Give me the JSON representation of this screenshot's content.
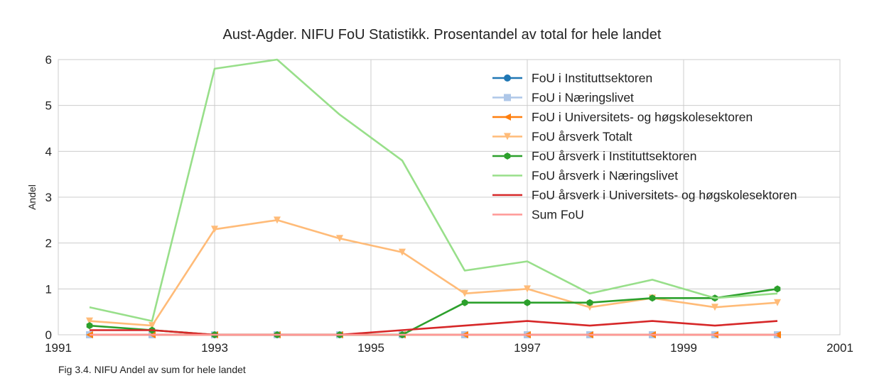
{
  "chart_data": {
    "type": "line",
    "title": "Aust-Agder. NIFU FoU Statistikk. Prosentandel av total for hele landet",
    "xlabel": "",
    "ylabel": "Andel",
    "xlim": [
      1991,
      2001
    ],
    "ylim": [
      0,
      6
    ],
    "xticks": [
      "1991",
      "1993",
      "1995",
      "1997",
      "1999",
      "2001"
    ],
    "yticks": [
      "0",
      "1",
      "2",
      "3",
      "4",
      "5",
      "6"
    ],
    "grid": true,
    "legend_position": "top-right",
    "x": [
      1991.4,
      1992.2,
      1993.0,
      1993.8,
      1994.6,
      1995.4,
      1996.2,
      1997.0,
      1997.8,
      1998.6,
      1999.4,
      2000.2
    ],
    "series": [
      {
        "name": "FoU i Instituttsektoren",
        "color": "#1f77b4",
        "marker": "circle",
        "values": [
          0,
          0,
          0,
          0,
          0,
          0,
          0,
          0,
          0,
          0,
          0,
          0
        ]
      },
      {
        "name": "FoU i Næringslivet",
        "color": "#aec7e8",
        "marker": "square",
        "values": [
          0,
          0,
          0,
          0,
          0,
          0,
          0,
          0,
          0,
          0,
          0,
          0
        ]
      },
      {
        "name": "FoU i Universitets- og høgskolesektoren",
        "color": "#ff7f0e",
        "marker": "triangle-left",
        "values": [
          0,
          0,
          0,
          0,
          0,
          0,
          0,
          0,
          0,
          0,
          0,
          0
        ]
      },
      {
        "name": "FoU årsverk Totalt",
        "color": "#ffbb78",
        "marker": "triangle-down",
        "values": [
          0.3,
          0.2,
          2.3,
          2.5,
          2.1,
          1.8,
          0.9,
          1.0,
          0.6,
          0.8,
          0.6,
          0.7
        ]
      },
      {
        "name": "FoU årsverk i Instituttsektoren",
        "color": "#2ca02c",
        "marker": "hexagon",
        "values": [
          0.2,
          0.1,
          0,
          0,
          0,
          0,
          0.7,
          0.7,
          0.7,
          0.8,
          0.8,
          1.0
        ]
      },
      {
        "name": "FoU årsverk i Næringslivet",
        "color": "#98df8a",
        "marker": "none",
        "values": [
          0.6,
          0.3,
          5.8,
          6.0,
          4.8,
          3.8,
          1.4,
          1.6,
          0.9,
          1.2,
          0.8,
          0.9
        ]
      },
      {
        "name": "FoU årsverk i Universitets- og høgskolesektoren",
        "color": "#d62728",
        "marker": "none",
        "values": [
          0.1,
          0.1,
          0,
          0,
          0,
          0.1,
          0.2,
          0.3,
          0.2,
          0.3,
          0.2,
          0.3
        ]
      },
      {
        "name": "Sum FoU",
        "color": "#ff9896",
        "marker": "none",
        "values": [
          0,
          0,
          0,
          0,
          0,
          0,
          0,
          0,
          0,
          0,
          0,
          0
        ]
      }
    ],
    "caption": "Fig 3.4. NIFU Andel av sum for hele landet"
  }
}
